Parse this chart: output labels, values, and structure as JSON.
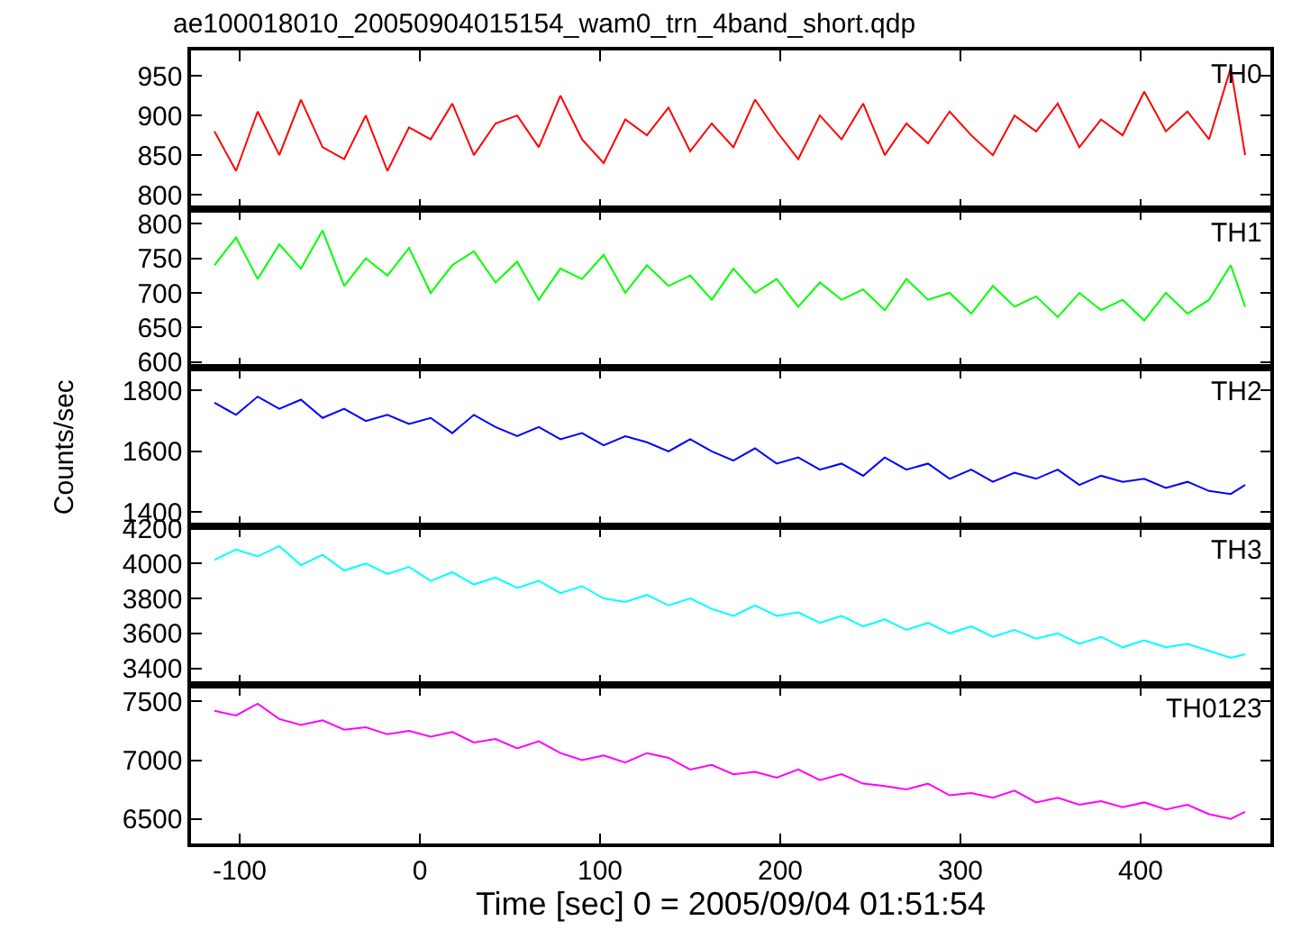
{
  "chart_data": [
    {
      "type": "line",
      "title": "ae100018010_20050904015154_wam0_trn_4band_short.qdp",
      "x": [
        -114,
        -102,
        -90,
        -78,
        -66,
        -54,
        -42,
        -30,
        -18,
        -6,
        6,
        18,
        30,
        42,
        54,
        66,
        78,
        90,
        102,
        114,
        126,
        138,
        150,
        162,
        174,
        186,
        198,
        210,
        222,
        234,
        246,
        258,
        270,
        282,
        294,
        306,
        318,
        330,
        342,
        354,
        366,
        378,
        390,
        402,
        414,
        426,
        438,
        450,
        458
      ],
      "series": [
        {
          "name": "TH0",
          "color": "#ff0000",
          "values": [
            880,
            830,
            905,
            850,
            920,
            860,
            845,
            900,
            830,
            885,
            870,
            915,
            850,
            890,
            900,
            860,
            925,
            870,
            840,
            895,
            875,
            910,
            855,
            890,
            860,
            920,
            880,
            845,
            900,
            870,
            915,
            850,
            890,
            865,
            905,
            875,
            850,
            900,
            880,
            915,
            860,
            895,
            875,
            930,
            880,
            905,
            870,
            960,
            850
          ]
        }
      ],
      "xlim": [
        -127,
        472
      ],
      "xticks": [
        -100,
        0,
        100,
        200,
        300,
        400
      ],
      "ylim": [
        782,
        982
      ],
      "yticks": [
        800,
        850,
        900,
        950
      ],
      "tick_labels": "y",
      "grid": false
    },
    {
      "type": "line",
      "x": [
        -114,
        -102,
        -90,
        -78,
        -66,
        -54,
        -42,
        -30,
        -18,
        -6,
        6,
        18,
        30,
        42,
        54,
        66,
        78,
        90,
        102,
        114,
        126,
        138,
        150,
        162,
        174,
        186,
        198,
        210,
        222,
        234,
        246,
        258,
        270,
        282,
        294,
        306,
        318,
        330,
        342,
        354,
        366,
        378,
        390,
        402,
        414,
        426,
        438,
        450,
        458
      ],
      "series": [
        {
          "name": "TH1",
          "color": "#00ff00",
          "values": [
            740,
            780,
            720,
            770,
            735,
            790,
            710,
            750,
            725,
            765,
            700,
            740,
            760,
            715,
            745,
            690,
            735,
            720,
            755,
            700,
            740,
            710,
            725,
            690,
            735,
            700,
            720,
            680,
            715,
            690,
            705,
            675,
            720,
            690,
            700,
            670,
            710,
            680,
            695,
            665,
            700,
            675,
            690,
            660,
            700,
            670,
            690,
            740,
            680
          ]
        }
      ],
      "xlim": [
        -127,
        472
      ],
      "xticks": [
        -100,
        0,
        100,
        200,
        300,
        400
      ],
      "ylim": [
        592,
        821
      ],
      "yticks": [
        600,
        650,
        700,
        750,
        800
      ],
      "tick_labels": "y",
      "grid": false
    },
    {
      "type": "line",
      "ylabel": "Counts/sec",
      "x": [
        -114,
        -102,
        -90,
        -78,
        -66,
        -54,
        -42,
        -30,
        -18,
        -6,
        6,
        18,
        30,
        42,
        54,
        66,
        78,
        90,
        102,
        114,
        126,
        138,
        150,
        162,
        174,
        186,
        198,
        210,
        222,
        234,
        246,
        258,
        270,
        282,
        294,
        306,
        318,
        330,
        342,
        354,
        366,
        378,
        390,
        402,
        414,
        426,
        438,
        450,
        458
      ],
      "series": [
        {
          "name": "TH2",
          "color": "#0000ff",
          "values": [
            1760,
            1720,
            1780,
            1740,
            1770,
            1710,
            1740,
            1700,
            1720,
            1690,
            1710,
            1660,
            1720,
            1680,
            1650,
            1680,
            1640,
            1660,
            1620,
            1650,
            1630,
            1600,
            1640,
            1600,
            1570,
            1610,
            1560,
            1580,
            1540,
            1560,
            1520,
            1580,
            1540,
            1560,
            1510,
            1540,
            1500,
            1530,
            1510,
            1540,
            1490,
            1520,
            1500,
            1510,
            1480,
            1500,
            1470,
            1460,
            1490
          ]
        }
      ],
      "xlim": [
        -127,
        472
      ],
      "xticks": [
        -100,
        0,
        100,
        200,
        300,
        400
      ],
      "ylim": [
        1354,
        1875
      ],
      "yticks": [
        1400,
        1600,
        1800
      ],
      "tick_labels": "y",
      "grid": false
    },
    {
      "type": "line",
      "x": [
        -114,
        -102,
        -90,
        -78,
        -66,
        -54,
        -42,
        -30,
        -18,
        -6,
        6,
        18,
        30,
        42,
        54,
        66,
        78,
        90,
        102,
        114,
        126,
        138,
        150,
        162,
        174,
        186,
        198,
        210,
        222,
        234,
        246,
        258,
        270,
        282,
        294,
        306,
        318,
        330,
        342,
        354,
        366,
        378,
        390,
        402,
        414,
        426,
        438,
        450,
        458
      ],
      "series": [
        {
          "name": "TH3",
          "color": "#00ffff",
          "values": [
            4020,
            4080,
            4040,
            4100,
            3990,
            4050,
            3960,
            4000,
            3940,
            3980,
            3900,
            3950,
            3880,
            3920,
            3860,
            3900,
            3830,
            3870,
            3800,
            3780,
            3820,
            3760,
            3800,
            3740,
            3700,
            3760,
            3700,
            3720,
            3660,
            3700,
            3640,
            3680,
            3620,
            3660,
            3600,
            3640,
            3580,
            3620,
            3570,
            3600,
            3540,
            3580,
            3520,
            3560,
            3520,
            3540,
            3500,
            3460,
            3480
          ]
        }
      ],
      "xlim": [
        -127,
        472
      ],
      "xticks": [
        -100,
        0,
        100,
        200,
        300,
        400
      ],
      "ylim": [
        3305,
        4213
      ],
      "yticks": [
        3400,
        3600,
        3800,
        4000,
        4200
      ],
      "tick_labels": "y",
      "grid": false
    },
    {
      "type": "line",
      "xlabel": "Time [sec] 0 = 2005/09/04 01:51:54",
      "x": [
        -114,
        -102,
        -90,
        -78,
        -66,
        -54,
        -42,
        -30,
        -18,
        -6,
        6,
        18,
        30,
        42,
        54,
        66,
        78,
        90,
        102,
        114,
        126,
        138,
        150,
        162,
        174,
        186,
        198,
        210,
        222,
        234,
        246,
        258,
        270,
        282,
        294,
        306,
        318,
        330,
        342,
        354,
        366,
        378,
        390,
        402,
        414,
        426,
        438,
        450,
        458
      ],
      "series": [
        {
          "name": "TH0123",
          "color": "#ff00ff",
          "values": [
            7420,
            7380,
            7480,
            7350,
            7300,
            7340,
            7260,
            7280,
            7220,
            7250,
            7200,
            7240,
            7150,
            7180,
            7100,
            7160,
            7060,
            7000,
            7040,
            6980,
            7060,
            7020,
            6920,
            6960,
            6880,
            6900,
            6850,
            6920,
            6830,
            6880,
            6800,
            6780,
            6750,
            6800,
            6700,
            6720,
            6680,
            6740,
            6640,
            6680,
            6620,
            6650,
            6600,
            6640,
            6580,
            6620,
            6540,
            6500,
            6560
          ]
        }
      ],
      "xlim": [
        -127,
        472
      ],
      "xticks": [
        -100,
        0,
        100,
        200,
        300,
        400
      ],
      "ylim": [
        6290,
        7641
      ],
      "yticks": [
        6500,
        7000,
        7500
      ],
      "grid": false
    }
  ]
}
